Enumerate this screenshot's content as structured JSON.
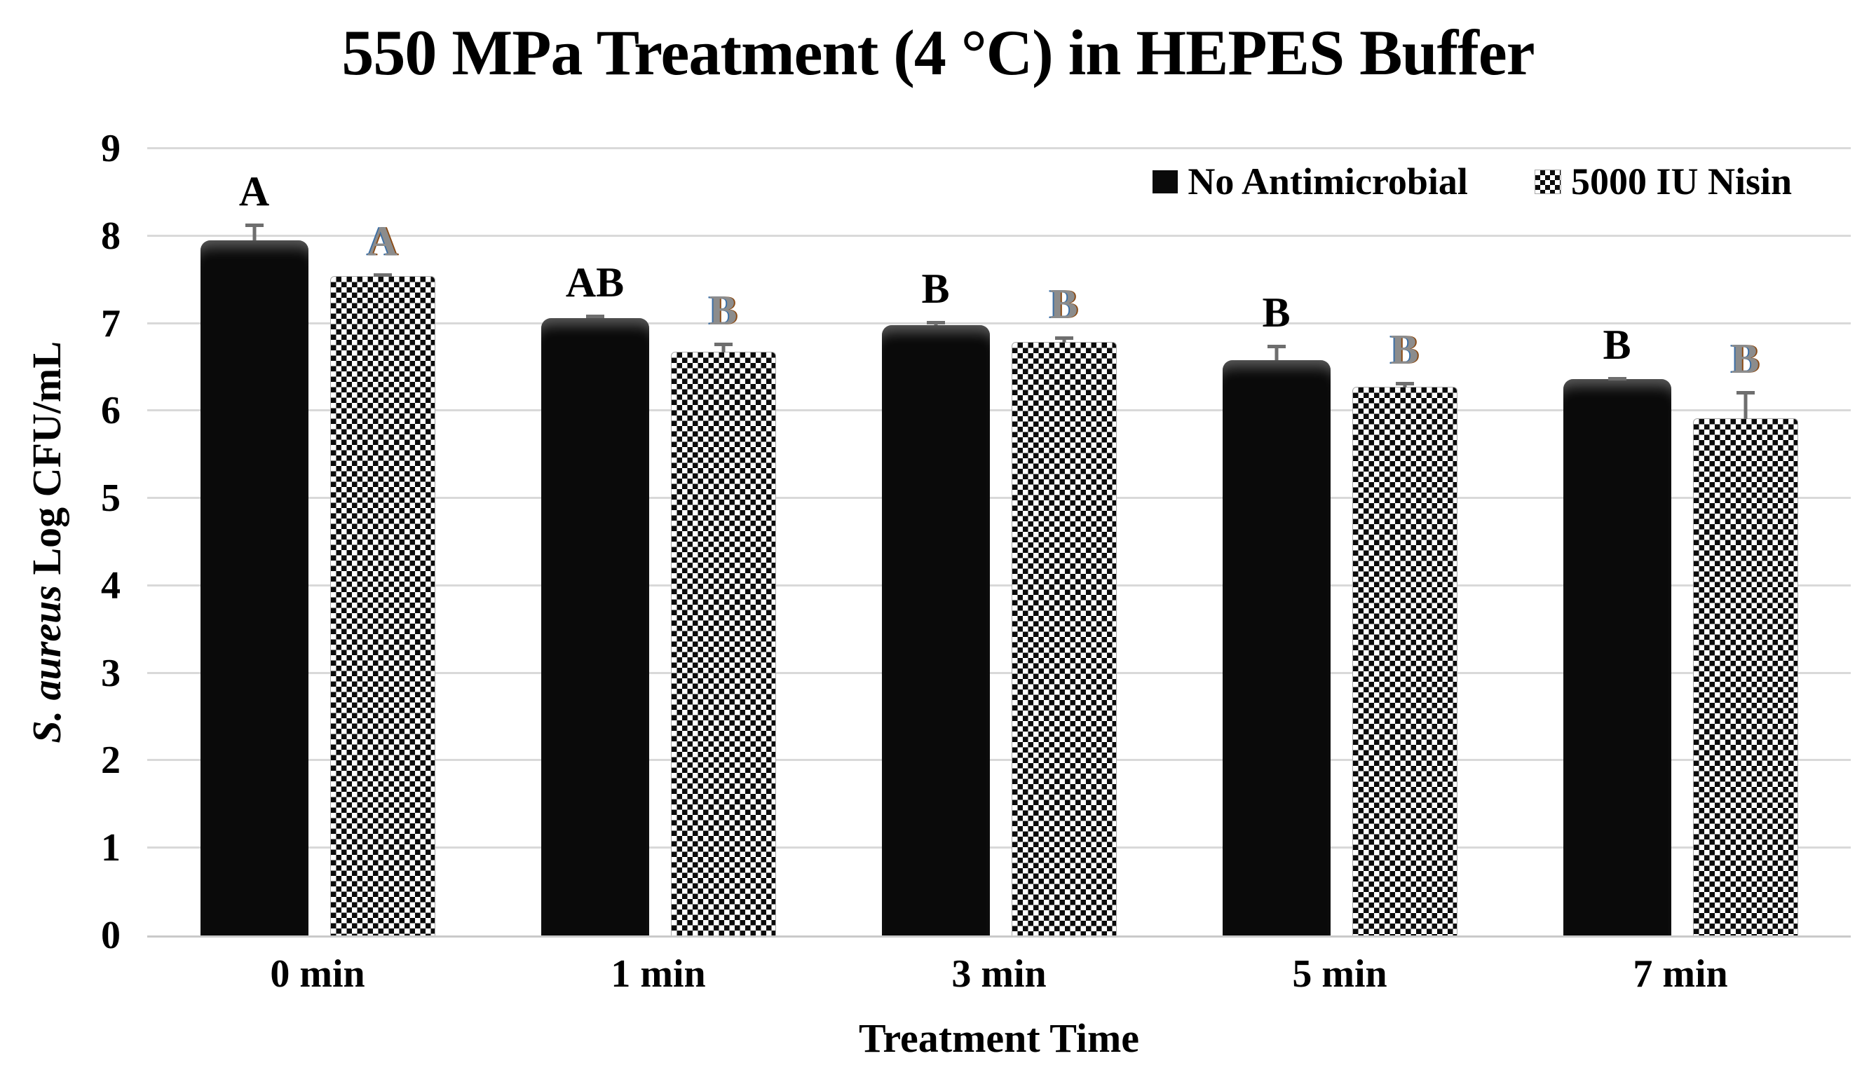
{
  "chart_data": {
    "type": "bar",
    "title": "550 MPa Treatment (4 °C) in HEPES Buffer",
    "xlabel": "Treatment Time",
    "ylabel": "S. aureus Log CFU/mL",
    "ylabel_italic": "S. aureus",
    "ylabel_rest": " Log CFU/mL",
    "ylim": [
      0,
      9
    ],
    "yticks": [
      0,
      1,
      2,
      3,
      4,
      5,
      6,
      7,
      8,
      9
    ],
    "categories": [
      "0 min",
      "1 min",
      "3 min",
      "5 min",
      "7 min"
    ],
    "series": [
      {
        "name": "No Antimicrobial",
        "pattern": "solid",
        "values": [
          7.95,
          7.06,
          6.98,
          6.58,
          6.36
        ],
        "errors_up": [
          0.19,
          0.04,
          0.05,
          0.18,
          0.03
        ],
        "sig_letters": [
          "A",
          "AB",
          "B",
          "B",
          "B"
        ]
      },
      {
        "name": "5000 IU Nisin",
        "pattern": "checker",
        "values": [
          7.53,
          6.67,
          6.78,
          6.27,
          5.91
        ],
        "errors_up": [
          0.04,
          0.11,
          0.07,
          0.06,
          0.32
        ],
        "sig_letters": [
          "A",
          "B",
          "B",
          "B",
          "B"
        ]
      }
    ],
    "legend_position": "top-right",
    "grid": true,
    "colors": {
      "bar_solid": "#0a0a0a",
      "letter_solid": "#000000",
      "letter_checker": "#8c8c8c",
      "letter_fringe_left": "#3a6ea5",
      "letter_fringe_right": "#8a4a14",
      "error_bar": "#6e6e6e",
      "gridline": "#d9d9d9",
      "background": "#ffffff"
    }
  }
}
